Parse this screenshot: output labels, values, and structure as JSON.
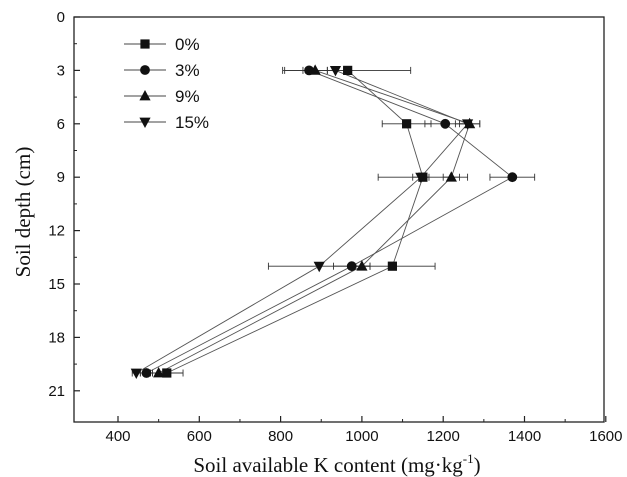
{
  "chart_data": {
    "type": "line",
    "orientation": "vertical-profile",
    "title": "",
    "xlabel": "Soil available K content (mg·kg",
    "xlabel_sup": "-1",
    "xlabel_close": ")",
    "ylabel": "Soil depth (cm)",
    "xlim": [
      300,
      1600
    ],
    "ylim": [
      0,
      22
    ],
    "y_inverted": true,
    "x_ticks": [
      400,
      600,
      800,
      1000,
      1200,
      1400,
      1600
    ],
    "y_ticks": [
      0,
      3,
      6,
      9,
      12,
      15,
      18,
      21
    ],
    "grid": false,
    "legend_position": "top-left",
    "depths": [
      3,
      6,
      9,
      14,
      20
    ],
    "series": [
      {
        "name": "0%",
        "marker": "square",
        "values": [
          965,
          1110,
          1150,
          1075,
          520
        ],
        "errors": [
          155,
          60,
          110,
          105,
          40
        ]
      },
      {
        "name": "3%",
        "marker": "circle",
        "values": [
          870,
          1205,
          1370,
          975,
          470
        ],
        "errors": [
          65,
          50,
          55,
          45,
          15
        ]
      },
      {
        "name": "9%",
        "marker": "triangle-up",
        "values": [
          885,
          1265,
          1220,
          1000,
          500
        ],
        "errors": [
          30,
          25,
          20,
          20,
          15
        ]
      },
      {
        "name": "15%",
        "marker": "triangle-down",
        "values": [
          935,
          1260,
          1145,
          895,
          445
        ],
        "errors": [
          20,
          30,
          20,
          125,
          10
        ]
      }
    ]
  }
}
